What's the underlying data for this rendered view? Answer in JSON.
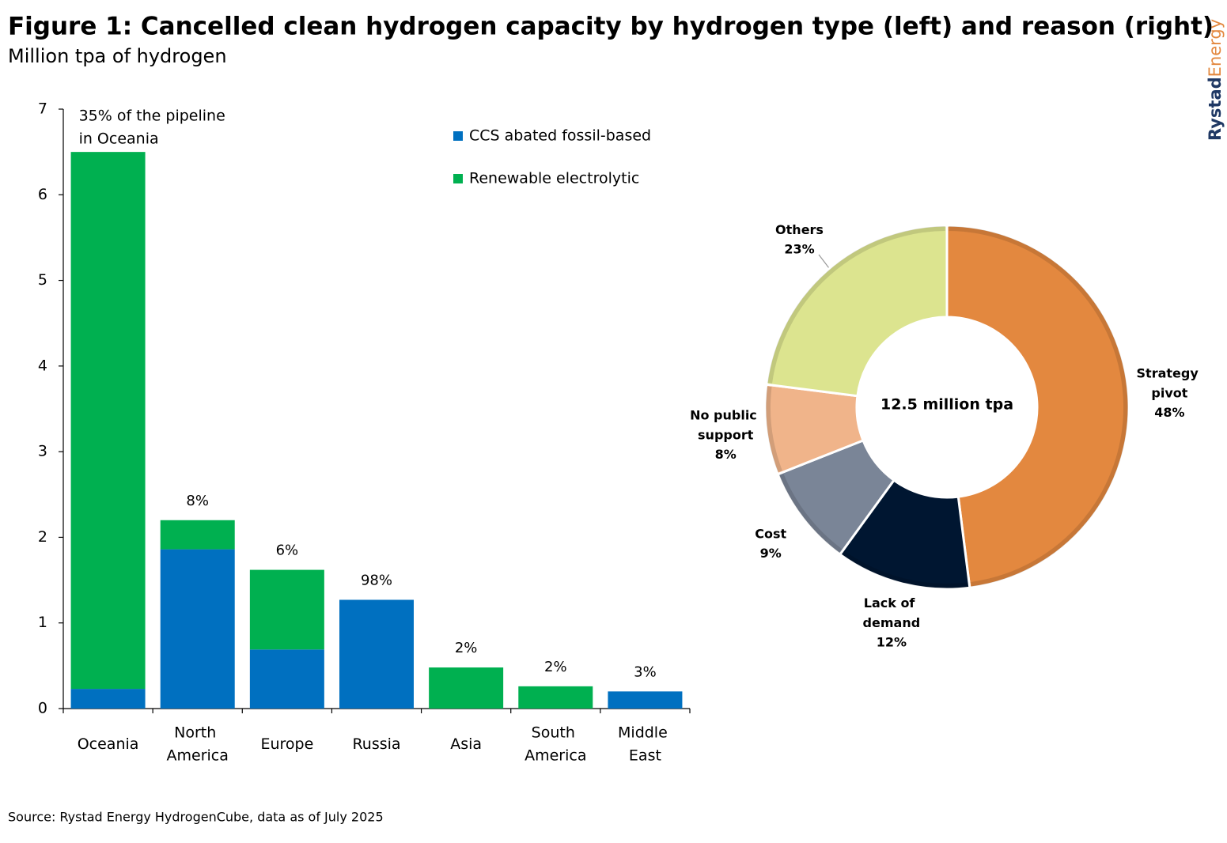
{
  "title": "Figure 1: Cancelled clean hydrogen capacity by hydrogen type (left) and reason (right)",
  "subtitle": "Million tpa of hydrogen",
  "source": "Source: Rystad Energy HydrogenCube, data as of July 2025",
  "brand": [
    "Rystad",
    "Energy"
  ],
  "chart_data": [
    {
      "type": "stacked-bar",
      "categories": [
        "Oceania",
        "North America",
        "Europe",
        "Russia",
        "Asia",
        "South America",
        "Middle East"
      ],
      "series": [
        {
          "name": "CCS abated fossil-based",
          "color": "#0070C0",
          "values": [
            0.23,
            1.86,
            0.69,
            1.27,
            0,
            0,
            0.2
          ]
        },
        {
          "name": "Renewable electrolytic",
          "color": "#00B050",
          "values": [
            6.27,
            0.34,
            0.93,
            0,
            0.48,
            0.26,
            0
          ]
        }
      ],
      "bar_notes": [
        [
          "35% of the pipeline",
          "in Oceania"
        ],
        [
          "8%"
        ],
        [
          "6%"
        ],
        [
          "98%"
        ],
        [
          "2%"
        ],
        [
          "2%"
        ],
        [
          "3%"
        ]
      ],
      "ylim": [
        0,
        7
      ],
      "yticks": [
        0,
        1,
        2,
        3,
        4,
        5,
        6,
        7
      ],
      "grid": false,
      "legend": "top-right"
    },
    {
      "type": "donut",
      "center_label": "12.5 million tpa",
      "categories": [
        "Strategy pivot",
        "Lack of demand",
        "Cost",
        "No public support",
        "Others"
      ],
      "values": [
        48,
        12,
        9,
        8,
        23
      ],
      "value_labels": [
        "48%",
        "12%",
        "9%",
        "8%",
        "23%"
      ],
      "colors": [
        "#E3883F",
        "#001631",
        "#7A8597",
        "#F0B48A",
        "#DCE48F"
      ],
      "label_colors": [
        "#E3883F",
        "#1F3864",
        "#7A8597",
        "#F0B48A",
        "#D2DC84"
      ]
    }
  ]
}
